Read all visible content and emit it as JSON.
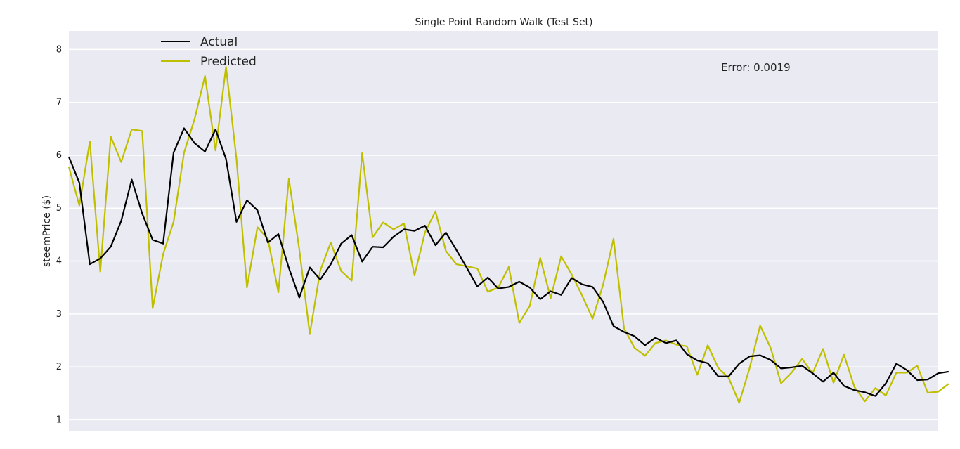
{
  "chart_data": {
    "type": "line",
    "title": "Single Point Random Walk (Test Set)",
    "xlabel": "",
    "ylabel": "steemPrice ($)",
    "ylim": [
      0.78,
      8.35
    ],
    "xlim": [
      0,
      83
    ],
    "y_ticks": [
      1,
      2,
      3,
      4,
      5,
      6,
      7,
      8
    ],
    "grid": true,
    "legend_position": "top-left",
    "annotation": "Error: 0.0019",
    "series": [
      {
        "name": "Actual",
        "color": "#000000",
        "values": [
          5.97,
          5.48,
          3.94,
          4.05,
          4.27,
          4.76,
          5.54,
          4.9,
          4.4,
          4.33,
          6.05,
          6.51,
          6.23,
          6.07,
          6.49,
          5.93,
          4.74,
          5.15,
          4.96,
          4.35,
          4.51,
          3.87,
          3.31,
          3.88,
          3.65,
          3.94,
          4.33,
          4.49,
          3.99,
          4.27,
          4.26,
          4.46,
          4.6,
          4.57,
          4.67,
          4.3,
          4.54,
          4.21,
          3.87,
          3.52,
          3.69,
          3.48,
          3.51,
          3.61,
          3.5,
          3.28,
          3.43,
          3.36,
          3.68,
          3.56,
          3.51,
          3.23,
          2.77,
          2.66,
          2.58,
          2.41,
          2.55,
          2.45,
          2.5,
          2.24,
          2.12,
          2.07,
          1.82,
          1.82,
          2.06,
          2.2,
          2.22,
          2.13,
          1.97,
          1.99,
          2.02,
          1.88,
          1.72,
          1.89,
          1.64,
          1.56,
          1.52,
          1.45,
          1.69,
          2.06,
          1.94,
          1.75,
          1.76,
          1.88,
          1.91
        ]
      },
      {
        "name": "Predicted",
        "color": "#bfbf00",
        "values": [
          5.78,
          5.05,
          6.26,
          3.8,
          6.35,
          5.87,
          6.49,
          6.46,
          3.11,
          4.13,
          4.74,
          6.05,
          6.68,
          7.5,
          6.09,
          7.67,
          5.93,
          3.5,
          4.64,
          4.42,
          3.41,
          5.56,
          4.22,
          2.62,
          3.82,
          4.35,
          3.81,
          3.63,
          6.04,
          4.45,
          4.73,
          4.6,
          4.71,
          3.73,
          4.54,
          4.94,
          4.19,
          3.94,
          3.9,
          3.86,
          3.42,
          3.5,
          3.89,
          2.83,
          3.15,
          4.06,
          3.3,
          4.09,
          3.75,
          3.35,
          2.91,
          3.55,
          4.42,
          2.73,
          2.36,
          2.21,
          2.45,
          2.5,
          2.42,
          2.39,
          1.85,
          2.41,
          1.98,
          1.79,
          1.32,
          1.98,
          2.78,
          2.36,
          1.69,
          1.89,
          2.15,
          1.88,
          2.34,
          1.7,
          2.23,
          1.62,
          1.35,
          1.6,
          1.46,
          1.89,
          1.89,
          2.02,
          1.51,
          1.53,
          1.68
        ]
      }
    ]
  }
}
